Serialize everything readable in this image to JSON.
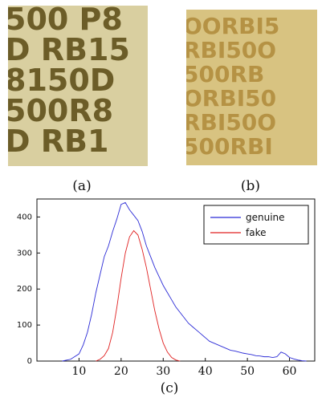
{
  "figure": {
    "panels": [
      {
        "label": "(a)",
        "texture_text": [
          "500 P8",
          "D RB15",
          "8150D",
          "500R8",
          "D RB1"
        ],
        "bg": "#d9cfa0",
        "ink": "#5a4a14"
      },
      {
        "label": "(b)",
        "texture_text": [
          "OORBI5",
          "RBI50O",
          "500RB",
          "ORBI50",
          "RBI50O",
          "500RBI"
        ],
        "bg": "#d8c381",
        "ink": "#b08a3a"
      },
      {
        "label": "(c)"
      }
    ]
  },
  "chart_data": {
    "type": "line",
    "ylim": [
      0,
      450
    ],
    "xlim": [
      0,
      66
    ],
    "yticks": [
      0,
      100,
      200,
      300,
      400
    ],
    "xticks": [
      10,
      20,
      30,
      40,
      50,
      60
    ],
    "legend_position": "top-right",
    "colors": {
      "genuine": "#2b2bd6",
      "fake": "#e02020"
    },
    "series": [
      {
        "name": "genuine",
        "x": [
          6,
          8,
          10,
          11,
          12,
          13,
          14,
          15,
          16,
          17,
          18,
          19,
          20,
          21,
          22,
          23,
          24,
          25,
          26,
          27,
          28,
          29,
          30,
          31,
          32,
          33,
          34,
          35,
          36,
          37,
          38,
          39,
          40,
          41,
          42,
          43,
          44,
          45,
          46,
          47,
          48,
          49,
          50,
          51,
          52,
          53,
          54,
          55,
          56,
          57,
          58,
          59,
          60,
          61,
          62,
          63,
          64
        ],
        "y": [
          0,
          5,
          20,
          45,
          80,
          130,
          190,
          240,
          290,
          320,
          360,
          395,
          435,
          440,
          420,
          405,
          390,
          360,
          320,
          290,
          260,
          235,
          210,
          190,
          170,
          150,
          135,
          120,
          105,
          95,
          85,
          75,
          65,
          55,
          50,
          45,
          40,
          35,
          30,
          28,
          25,
          22,
          20,
          18,
          15,
          14,
          12,
          12,
          10,
          12,
          25,
          20,
          10,
          6,
          3,
          1,
          0
        ]
      },
      {
        "name": "fake",
        "x": [
          14,
          15,
          16,
          17,
          18,
          19,
          20,
          21,
          22,
          23,
          24,
          25,
          26,
          27,
          28,
          29,
          30,
          31,
          32,
          33,
          34
        ],
        "y": [
          0,
          5,
          15,
          35,
          80,
          150,
          230,
          300,
          345,
          362,
          350,
          310,
          260,
          200,
          140,
          90,
          50,
          25,
          10,
          3,
          0
        ]
      }
    ]
  }
}
